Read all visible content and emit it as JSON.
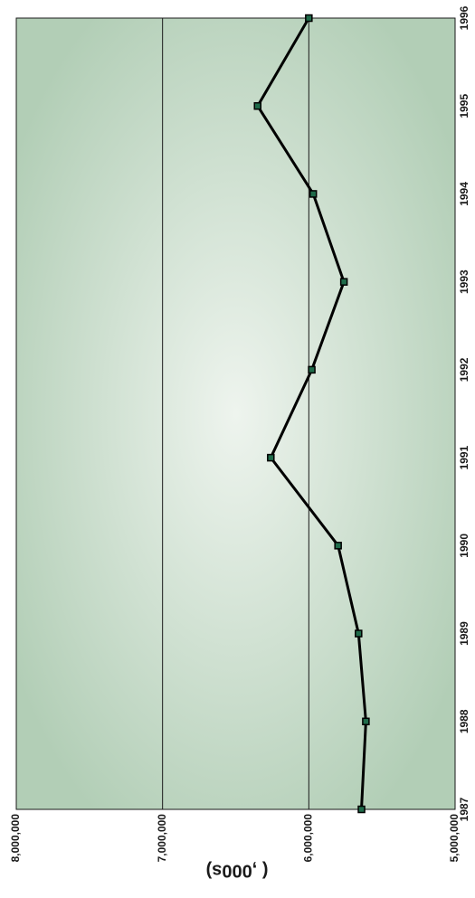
{
  "chart_data": {
    "type": "line",
    "orientation": "rotated-90-clockwise",
    "title": "",
    "xlabel": "",
    "ylabel": "( ,000s)",
    "x": [
      1987,
      1988,
      1989,
      1990,
      1991,
      1992,
      1993,
      1994,
      1995,
      1996
    ],
    "x_tick_labels": [
      "1987",
      "1988",
      "1989",
      "1990",
      "1991",
      "1992",
      "1993",
      "1994",
      "1995",
      "1996"
    ],
    "ylim": [
      5000000,
      8000000
    ],
    "y_tick_values": [
      5000000,
      6000000,
      7000000,
      8000000
    ],
    "y_tick_labels": [
      "5,000,000",
      "6,000,000",
      "7,000,000",
      "8,000,000"
    ],
    "grid": "horizontal-major",
    "legend": "none",
    "series": [
      {
        "values": [
          5640000,
          5610000,
          5660000,
          5800000,
          6260000,
          5980000,
          5760000,
          5970000,
          6350000,
          6000000
        ]
      }
    ],
    "colors": {
      "plot_bg_center": "#eef4ee",
      "plot_bg_edge": "#b2ceb6",
      "line": "#000000",
      "marker_fill": "#1f6b4a",
      "grid": "#1a1a1a"
    }
  }
}
